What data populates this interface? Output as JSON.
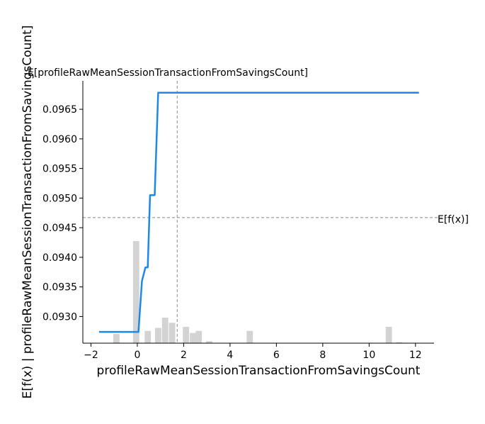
{
  "chart_data": {
    "type": "line",
    "xlabel": "profileRawMeanSessionTransactionFromSavingsCount",
    "ylabel": "E[f(x) | profileRawMeanSessionTransactionFromSavingsCount]",
    "xlim": [
      -2.35,
      12.8
    ],
    "ylim": [
      0.09255,
      0.09698
    ],
    "x_ticks": [
      -2,
      0,
      2,
      4,
      6,
      8,
      10,
      12
    ],
    "x_tick_labels": [
      "−2",
      "0",
      "2",
      "4",
      "6",
      "8",
      "10",
      "12"
    ],
    "y_ticks": [
      0.093,
      0.0935,
      0.094,
      0.0945,
      0.095,
      0.0955,
      0.096,
      0.0965
    ],
    "y_tick_labels": [
      "0.0930",
      "0.0935",
      "0.0940",
      "0.0945",
      "0.0950",
      "0.0955",
      "0.0960",
      "0.0965"
    ],
    "grid": false,
    "series": [
      {
        "color": "#1e88e5",
        "x": [
          -1.65,
          0.0,
          0.05,
          0.2,
          0.35,
          0.45,
          0.55,
          0.65,
          0.75,
          0.9,
          12.15
        ],
        "y": [
          0.09274,
          0.09274,
          0.09274,
          0.0936,
          0.09383,
          0.09383,
          0.09505,
          0.09505,
          0.09505,
          0.09678,
          0.09678
        ]
      }
    ],
    "mean_prediction": {
      "label": "E[f(x)]",
      "value": 0.09467
    },
    "mean_feature": {
      "label": "E[profileRawMeanSessionTransactionFromSavingsCount]",
      "value": 1.72
    },
    "histogram": {
      "color": "#d3d3d3",
      "bin_width": 0.27,
      "centers": [
        -0.9,
        -0.05,
        0.45,
        0.9,
        1.2,
        1.5,
        2.1,
        2.4,
        2.65,
        3.1,
        4.85,
        10.85,
        11.3
      ],
      "relative_heights": [
        0.09,
        1.0,
        0.12,
        0.15,
        0.25,
        0.2,
        0.16,
        0.1,
        0.12,
        0.02,
        0.12,
        0.16,
        0.01
      ]
    }
  }
}
